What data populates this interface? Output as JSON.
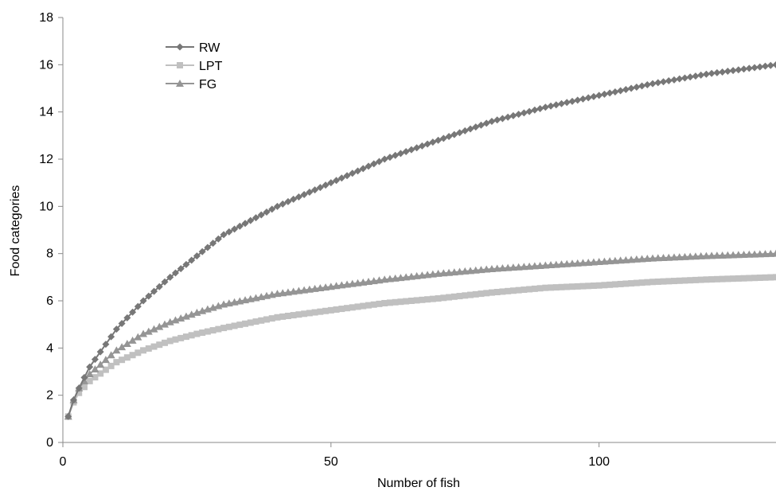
{
  "chart_data": {
    "type": "line",
    "title": "",
    "xlabel": "Number of fish",
    "ylabel": "Food categories",
    "xlim": [
      0,
      133
    ],
    "ylim": [
      0,
      18
    ],
    "x_ticks": [
      0,
      50,
      100
    ],
    "y_ticks": [
      0,
      2,
      4,
      6,
      8,
      10,
      12,
      14,
      16,
      18
    ],
    "grid": false,
    "legend_position": "top-left",
    "series": [
      {
        "name": "RW",
        "color": "#777777",
        "marker": "diamond",
        "x": [
          1,
          2,
          3,
          5,
          10,
          15,
          20,
          25,
          30,
          40,
          50,
          60,
          70,
          80,
          90,
          100,
          110,
          120,
          133
        ],
        "y": [
          1.1,
          1.8,
          2.3,
          3.2,
          4.8,
          6.0,
          7.0,
          7.9,
          8.8,
          10.0,
          11.0,
          12.0,
          12.8,
          13.6,
          14.2,
          14.7,
          15.2,
          15.6,
          16.0
        ]
      },
      {
        "name": "LPT",
        "color": "#c0c0c0",
        "marker": "square",
        "x": [
          1,
          2,
          3,
          5,
          10,
          15,
          20,
          25,
          30,
          40,
          50,
          60,
          70,
          80,
          90,
          100,
          110,
          120,
          133
        ],
        "y": [
          1.1,
          1.7,
          2.1,
          2.6,
          3.4,
          3.9,
          4.3,
          4.6,
          4.85,
          5.3,
          5.6,
          5.9,
          6.1,
          6.35,
          6.55,
          6.65,
          6.8,
          6.9,
          7.0
        ]
      },
      {
        "name": "FG",
        "color": "#959595",
        "marker": "triangle",
        "x": [
          1,
          2,
          3,
          5,
          10,
          15,
          20,
          25,
          30,
          40,
          50,
          60,
          70,
          80,
          90,
          100,
          110,
          120,
          133
        ],
        "y": [
          1.1,
          1.8,
          2.3,
          2.9,
          3.9,
          4.6,
          5.1,
          5.5,
          5.85,
          6.3,
          6.6,
          6.9,
          7.15,
          7.35,
          7.5,
          7.65,
          7.8,
          7.9,
          8.0
        ]
      }
    ]
  }
}
